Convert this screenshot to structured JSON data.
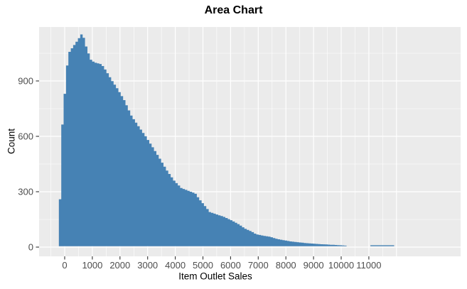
{
  "chart_data": {
    "type": "area",
    "title": "Area Chart",
    "xlabel": "Item Outlet Sales",
    "ylabel": "Count",
    "legend": "none",
    "grid": "white major and minor gridlines on gray panel",
    "x_ticks": [
      0,
      1000,
      2000,
      3000,
      4000,
      5000,
      6000,
      7000,
      8000,
      9000,
      10000,
      11000
    ],
    "y_ticks": [
      0,
      300,
      600,
      900
    ],
    "x_gridlines_major": [
      0,
      1000,
      2000,
      3000,
      4000,
      5000,
      6000,
      7000,
      8000,
      9000,
      10000,
      11000,
      12000
    ],
    "x_gridlines_minor": [
      -500,
      500,
      1500,
      2500,
      3500,
      4500,
      5500,
      6500,
      7500,
      8500,
      9500,
      10500,
      11500
    ],
    "y_gridlines_minor": [
      150,
      450,
      750,
      1050
    ],
    "xlim": [
      -925,
      14320
    ],
    "ylim": [
      -50,
      1192
    ],
    "points": [
      [
        -210,
        0
      ],
      [
        -190,
        60
      ],
      [
        -160,
        320
      ],
      [
        -120,
        560
      ],
      [
        -60,
        720
      ],
      [
        40,
        890
      ],
      [
        100,
        1000
      ],
      [
        180,
        1060
      ],
      [
        400,
        1105
      ],
      [
        560,
        1140
      ],
      [
        640,
        1160
      ],
      [
        700,
        1130
      ],
      [
        800,
        1075
      ],
      [
        950,
        1015
      ],
      [
        1080,
        1000
      ],
      [
        1340,
        990
      ],
      [
        1520,
        950
      ],
      [
        1700,
        905
      ],
      [
        1900,
        860
      ],
      [
        2160,
        795
      ],
      [
        2420,
        710
      ],
      [
        2670,
        655
      ],
      [
        2930,
        600
      ],
      [
        3190,
        540
      ],
      [
        3440,
        480
      ],
      [
        3700,
        415
      ],
      [
        3960,
        360
      ],
      [
        4220,
        320
      ],
      [
        4600,
        298
      ],
      [
        4730,
        290
      ],
      [
        4860,
        262
      ],
      [
        5120,
        215
      ],
      [
        5250,
        190
      ],
      [
        5500,
        177
      ],
      [
        5760,
        164
      ],
      [
        6020,
        146
      ],
      [
        6270,
        126
      ],
      [
        6530,
        100
      ],
      [
        6790,
        82
      ],
      [
        6920,
        70
      ],
      [
        7180,
        62
      ],
      [
        7430,
        56
      ],
      [
        7690,
        44
      ],
      [
        7940,
        37
      ],
      [
        8200,
        30
      ],
      [
        8460,
        26
      ],
      [
        8720,
        22
      ],
      [
        8980,
        19
      ],
      [
        9230,
        16
      ],
      [
        9480,
        14
      ],
      [
        9740,
        12
      ],
      [
        10000,
        10
      ],
      [
        10170,
        8
      ],
      [
        10180,
        0
      ],
      [
        11040,
        0
      ],
      [
        11060,
        10
      ],
      [
        11900,
        10
      ],
      [
        11930,
        0
      ]
    ],
    "colors": {
      "area_fill": "#4682B4",
      "panel_background": "#EBEBEB",
      "gridline": "#FFFFFF",
      "tick_mark": "#333333",
      "tick_label": "#4D4D4D",
      "text": "#000000"
    }
  }
}
